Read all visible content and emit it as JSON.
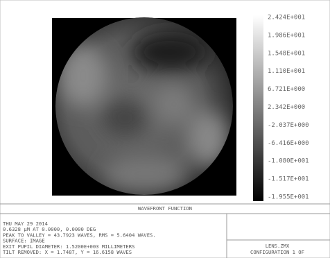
{
  "plot": {
    "legend_labels": [
      "2.424E+001",
      "1.986E+001",
      "1.548E+001",
      "1.110E+001",
      "6.721E+000",
      "2.342E+000",
      "-2.037E+000",
      "-6.416E+000",
      "-1.080E+001",
      "-1.517E+001",
      "-1.955E+001"
    ]
  },
  "caption": "WAVEFRONT FUNCTION",
  "info": {
    "lines": [
      "THU MAY 29 2014",
      "0.6328 µM AT 0.0000, 0.0000 DEG",
      "PEAK TO VALLEY = 43.7923 WAVES, RMS = 5.6404 WAVES.",
      "SURFACE: IMAGE",
      "EXIT PUPIL DIAMETER: 1.5200E+003 MILLIMETERS",
      "TILT REMOVED: X = 1.7487, Y = 16.6158 WAVES"
    ],
    "file": "LENS.ZMX",
    "config": "CONFIGURATION 1 OF"
  }
}
